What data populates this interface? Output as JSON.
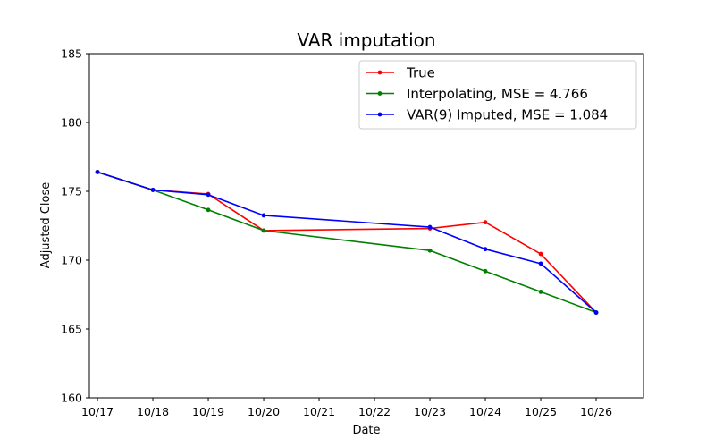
{
  "chart_data": {
    "type": "line",
    "title": "VAR imputation",
    "xlabel": "Date",
    "ylabel": "Adjusted Close",
    "ylim": [
      160,
      185
    ],
    "xlim": [
      "10/16 20:30",
      "10/26 20:30"
    ],
    "x_ticks": [
      "10/17",
      "10/18",
      "10/19",
      "10/20",
      "10/21",
      "10/22",
      "10/23",
      "10/24",
      "10/25",
      "10/26"
    ],
    "y_ticks": [
      160,
      165,
      170,
      175,
      180,
      185
    ],
    "grid": false,
    "legend_position": "top-right",
    "series": [
      {
        "name": "True",
        "color": "#ff0000",
        "x": [
          "10/17",
          "10/18",
          "10/19",
          "10/20",
          "10/23",
          "10/24",
          "10/25",
          "10/26"
        ],
        "values": [
          176.4,
          175.1,
          174.8,
          172.15,
          172.3,
          172.75,
          170.45,
          166.2
        ]
      },
      {
        "name": "Interpolating, MSE = 4.766",
        "color": "#008000",
        "x": [
          "10/17",
          "10/18",
          "10/19",
          "10/20",
          "10/23",
          "10/24",
          "10/25",
          "10/26"
        ],
        "values": [
          176.4,
          175.1,
          173.65,
          172.15,
          170.7,
          169.2,
          167.7,
          166.2
        ]
      },
      {
        "name": "VAR(9) Imputed, MSE = 1.084",
        "color": "#0000ff",
        "x": [
          "10/17",
          "10/18",
          "10/19",
          "10/20",
          "10/23",
          "10/24",
          "10/25",
          "10/26"
        ],
        "values": [
          176.4,
          175.1,
          174.75,
          173.25,
          172.4,
          170.8,
          169.75,
          166.2
        ]
      }
    ]
  }
}
